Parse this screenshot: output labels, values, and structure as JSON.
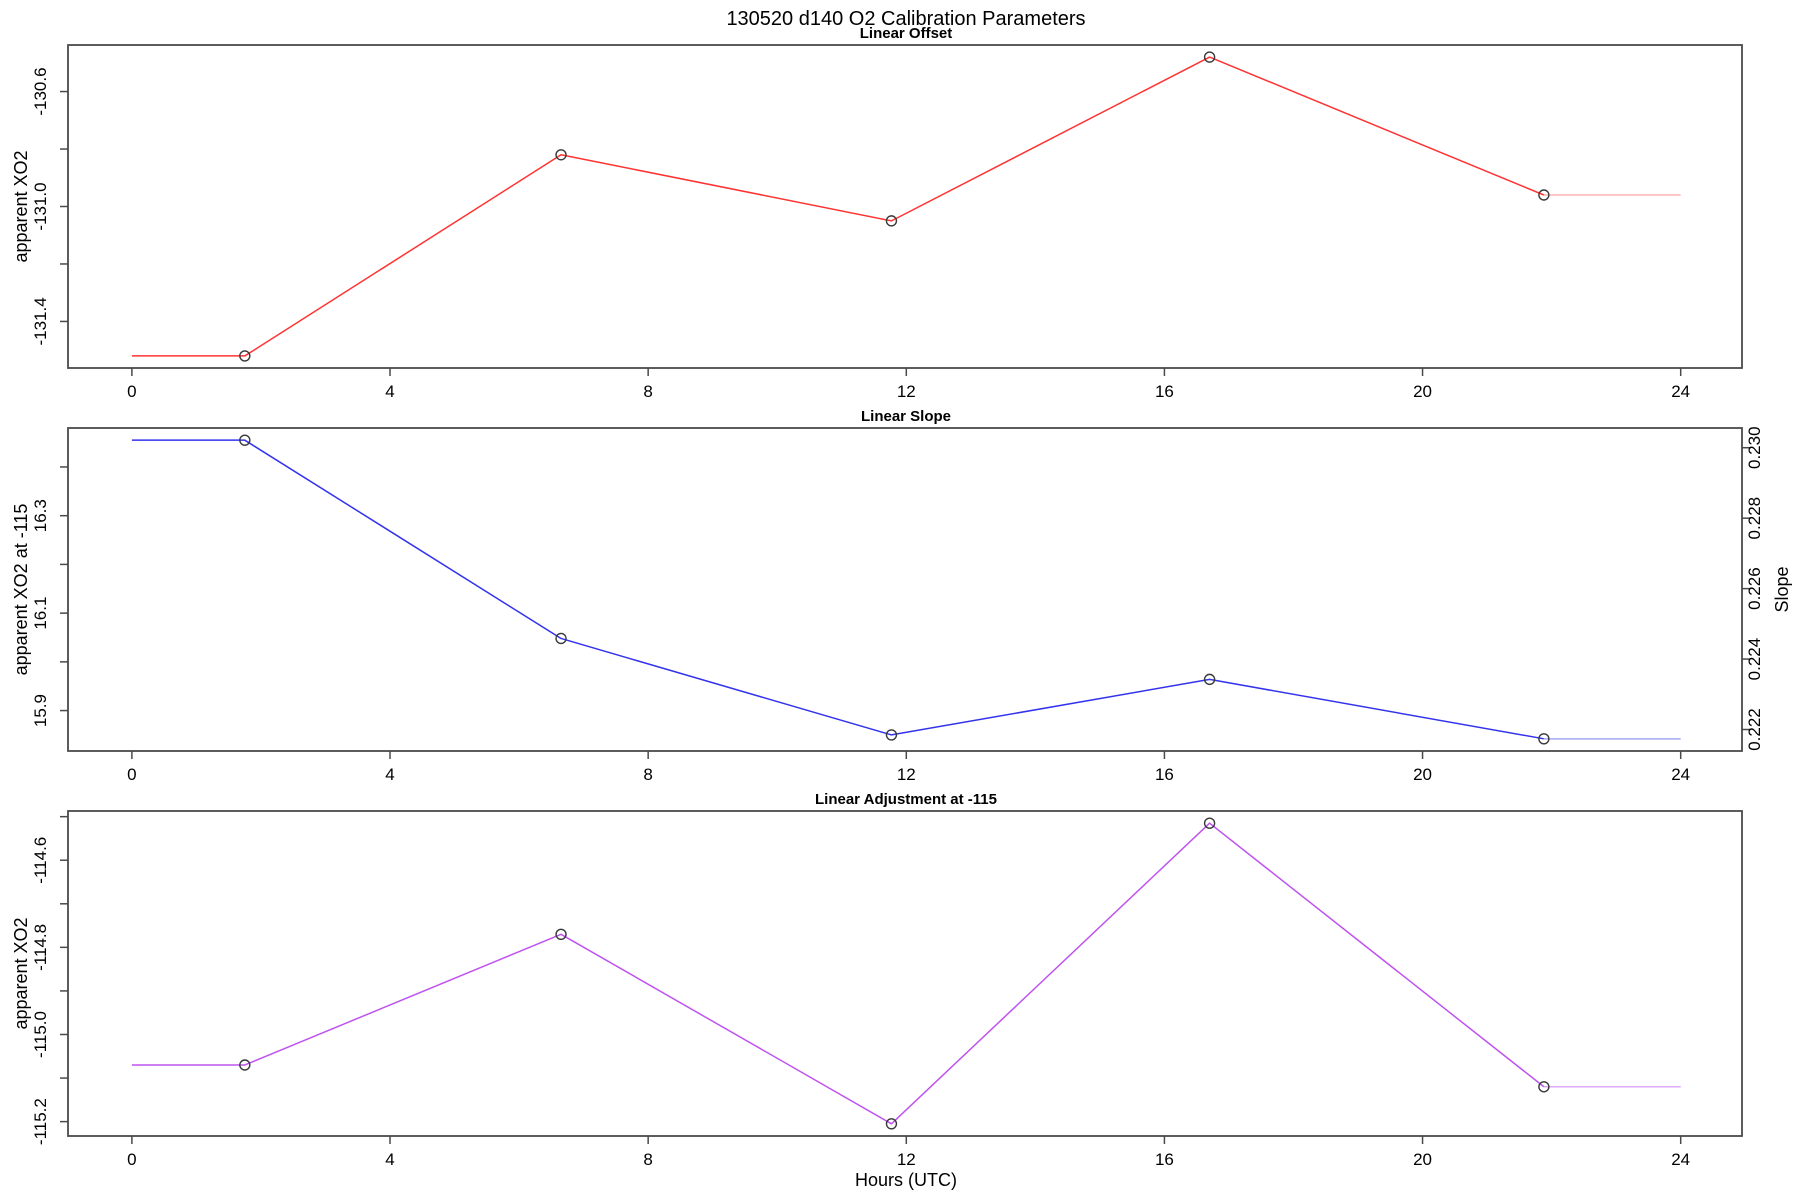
{
  "figure": {
    "title": "130520   d140   O2 Calibration Parameters",
    "xlabel": "Hours (UTC)",
    "xlim": [
      -0.99,
      24.95
    ],
    "x_ticks": [
      {
        "v": 0,
        "label": "0"
      },
      {
        "v": 4,
        "label": "4"
      },
      {
        "v": 8,
        "label": "8"
      },
      {
        "v": 12,
        "label": "12"
      },
      {
        "v": 16,
        "label": "16"
      },
      {
        "v": 20,
        "label": "20"
      },
      {
        "v": 24,
        "label": "24"
      }
    ],
    "background": "#ffffff",
    "axis_color": "#4a4a4a",
    "marker_color": "#3a3a3a"
  },
  "chart_data": [
    {
      "type": "line",
      "title": "Linear Offset",
      "ylabel": "apparent XO2",
      "color": "#ff3333",
      "trail_color": "#ffb3b3",
      "x": [
        1.75,
        6.65,
        11.77,
        16.7,
        21.88
      ],
      "values": [
        -131.52,
        -130.82,
        -131.05,
        -130.48,
        -130.96
      ],
      "extend_start": {
        "x": 0,
        "value": -131.52
      },
      "extend_end": {
        "x": 24,
        "value": -130.96
      },
      "ylim": [
        -131.562,
        -130.438
      ],
      "yticks": [
        {
          "v": -131.4,
          "label": "-131.4"
        },
        {
          "v": -131.2,
          "label": ""
        },
        {
          "v": -131.0,
          "label": "-131.0"
        },
        {
          "v": -130.8,
          "label": ""
        },
        {
          "v": -130.6,
          "label": "-130.6"
        }
      ]
    },
    {
      "type": "line",
      "title": "Linear Slope",
      "ylabel": "apparent XO2 at -115",
      "color": "#3333ee",
      "trail_color": "#a6a6f2",
      "x": [
        1.75,
        6.65,
        11.77,
        16.7,
        21.88
      ],
      "values": [
        16.455,
        16.048,
        15.85,
        15.964,
        15.842
      ],
      "extend_start": {
        "x": 0,
        "value": 16.455
      },
      "extend_end": {
        "x": 24,
        "value": 15.842
      },
      "ylim": [
        15.817,
        16.48
      ],
      "yticks": [
        {
          "v": 15.9,
          "label": "15.9"
        },
        {
          "v": 16.0,
          "label": ""
        },
        {
          "v": 16.1,
          "label": "16.1"
        },
        {
          "v": 16.2,
          "label": ""
        },
        {
          "v": 16.3,
          "label": "16.3"
        },
        {
          "v": 16.4,
          "label": ""
        }
      ],
      "right_axis": {
        "label": "Slope",
        "lim": [
          0.22139,
          0.23056
        ],
        "ticks": [
          {
            "v": 0.222,
            "label": "0.222"
          },
          {
            "v": 0.224,
            "label": "0.224"
          },
          {
            "v": 0.226,
            "label": "0.226"
          },
          {
            "v": 0.228,
            "label": "0.228"
          },
          {
            "v": 0.23,
            "label": "0.230"
          }
        ],
        "values_on_scale": [
          0.2302,
          0.2246,
          0.2218,
          0.2234,
          0.2217
        ]
      }
    },
    {
      "type": "line",
      "title": "Linear Adjustment at -115",
      "ylabel": "apparent XO2",
      "color": "#bf53f0",
      "trail_color": "#ddaaf7",
      "x": [
        1.75,
        6.65,
        11.77,
        16.7,
        21.88
      ],
      "values": [
        -115.07,
        -114.77,
        -115.205,
        -114.515,
        -115.12
      ],
      "extend_start": {
        "x": 0,
        "value": -115.07
      },
      "extend_end": {
        "x": 24,
        "value": -115.12
      },
      "ylim": [
        -115.233,
        -114.487
      ],
      "yticks": [
        {
          "v": -115.2,
          "label": "-115.2"
        },
        {
          "v": -115.1,
          "label": ""
        },
        {
          "v": -115.0,
          "label": "-115.0"
        },
        {
          "v": -114.9,
          "label": ""
        },
        {
          "v": -114.8,
          "label": "-114.8"
        },
        {
          "v": -114.7,
          "label": ""
        },
        {
          "v": -114.6,
          "label": "-114.6"
        },
        {
          "v": -114.5,
          "label": ""
        }
      ]
    }
  ]
}
